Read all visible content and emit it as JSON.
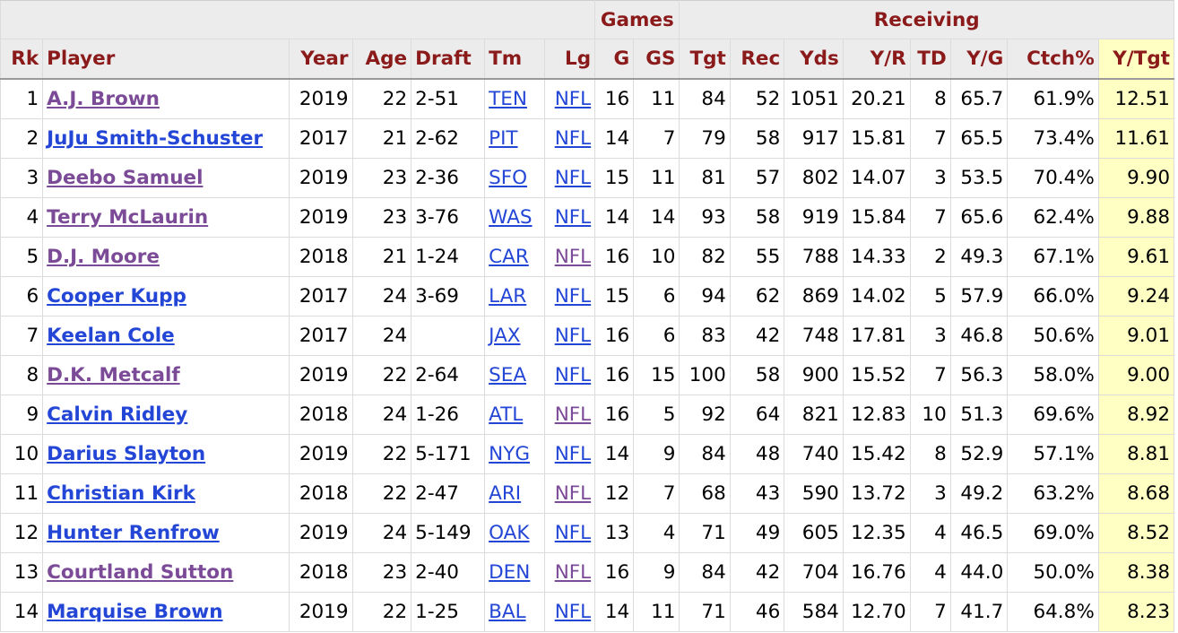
{
  "over_header": {
    "games": "Games",
    "receiving": "Receiving"
  },
  "columns": {
    "rk": "Rk",
    "player": "Player",
    "year": "Year",
    "age": "Age",
    "draft": "Draft",
    "tm": "Tm",
    "lg": "Lg",
    "g": "G",
    "gs": "GS",
    "tgt": "Tgt",
    "rec": "Rec",
    "yds": "Yds",
    "yr": "Y/R",
    "td": "TD",
    "yg": "Y/G",
    "ctch": "Ctch%",
    "ytgt": "Y/Tgt"
  },
  "colors": {
    "header_text": "#8b1a1a",
    "link": "#2346d6",
    "visited_link": "#7b4b97",
    "highlight": "#ffffc4"
  },
  "rows": [
    {
      "rk": "1",
      "player": "A.J. Brown",
      "player_visited": true,
      "year": "2019",
      "age": "22",
      "draft": "2-51",
      "tm": "TEN",
      "tm_visited": false,
      "lg": "NFL",
      "lg_visited": false,
      "g": "16",
      "gs": "11",
      "tgt": "84",
      "rec": "52",
      "yds": "1051",
      "yr": "20.21",
      "td": "8",
      "yg": "65.7",
      "ctch": "61.9%",
      "ytgt": "12.51"
    },
    {
      "rk": "2",
      "player": "JuJu Smith-Schuster",
      "player_visited": false,
      "year": "2017",
      "age": "21",
      "draft": "2-62",
      "tm": "PIT",
      "tm_visited": false,
      "lg": "NFL",
      "lg_visited": false,
      "g": "14",
      "gs": "7",
      "tgt": "79",
      "rec": "58",
      "yds": "917",
      "yr": "15.81",
      "td": "7",
      "yg": "65.5",
      "ctch": "73.4%",
      "ytgt": "11.61"
    },
    {
      "rk": "3",
      "player": "Deebo Samuel",
      "player_visited": true,
      "year": "2019",
      "age": "23",
      "draft": "2-36",
      "tm": "SFO",
      "tm_visited": false,
      "lg": "NFL",
      "lg_visited": false,
      "g": "15",
      "gs": "11",
      "tgt": "81",
      "rec": "57",
      "yds": "802",
      "yr": "14.07",
      "td": "3",
      "yg": "53.5",
      "ctch": "70.4%",
      "ytgt": "9.90"
    },
    {
      "rk": "4",
      "player": "Terry McLaurin",
      "player_visited": true,
      "year": "2019",
      "age": "23",
      "draft": "3-76",
      "tm": "WAS",
      "tm_visited": false,
      "lg": "NFL",
      "lg_visited": false,
      "g": "14",
      "gs": "14",
      "tgt": "93",
      "rec": "58",
      "yds": "919",
      "yr": "15.84",
      "td": "7",
      "yg": "65.6",
      "ctch": "62.4%",
      "ytgt": "9.88"
    },
    {
      "rk": "5",
      "player": "D.J. Moore",
      "player_visited": true,
      "year": "2018",
      "age": "21",
      "draft": "1-24",
      "tm": "CAR",
      "tm_visited": false,
      "lg": "NFL",
      "lg_visited": true,
      "g": "16",
      "gs": "10",
      "tgt": "82",
      "rec": "55",
      "yds": "788",
      "yr": "14.33",
      "td": "2",
      "yg": "49.3",
      "ctch": "67.1%",
      "ytgt": "9.61"
    },
    {
      "rk": "6",
      "player": "Cooper Kupp",
      "player_visited": false,
      "year": "2017",
      "age": "24",
      "draft": "3-69",
      "tm": "LAR",
      "tm_visited": false,
      "lg": "NFL",
      "lg_visited": false,
      "g": "15",
      "gs": "6",
      "tgt": "94",
      "rec": "62",
      "yds": "869",
      "yr": "14.02",
      "td": "5",
      "yg": "57.9",
      "ctch": "66.0%",
      "ytgt": "9.24"
    },
    {
      "rk": "7",
      "player": "Keelan Cole",
      "player_visited": false,
      "year": "2017",
      "age": "24",
      "draft": "",
      "tm": "JAX",
      "tm_visited": false,
      "lg": "NFL",
      "lg_visited": false,
      "g": "16",
      "gs": "6",
      "tgt": "83",
      "rec": "42",
      "yds": "748",
      "yr": "17.81",
      "td": "3",
      "yg": "46.8",
      "ctch": "50.6%",
      "ytgt": "9.01"
    },
    {
      "rk": "8",
      "player": "D.K. Metcalf",
      "player_visited": true,
      "year": "2019",
      "age": "22",
      "draft": "2-64",
      "tm": "SEA",
      "tm_visited": false,
      "lg": "NFL",
      "lg_visited": false,
      "g": "16",
      "gs": "15",
      "tgt": "100",
      "rec": "58",
      "yds": "900",
      "yr": "15.52",
      "td": "7",
      "yg": "56.3",
      "ctch": "58.0%",
      "ytgt": "9.00"
    },
    {
      "rk": "9",
      "player": "Calvin Ridley",
      "player_visited": false,
      "year": "2018",
      "age": "24",
      "draft": "1-26",
      "tm": "ATL",
      "tm_visited": false,
      "lg": "NFL",
      "lg_visited": true,
      "g": "16",
      "gs": "5",
      "tgt": "92",
      "rec": "64",
      "yds": "821",
      "yr": "12.83",
      "td": "10",
      "yg": "51.3",
      "ctch": "69.6%",
      "ytgt": "8.92"
    },
    {
      "rk": "10",
      "player": "Darius Slayton",
      "player_visited": false,
      "year": "2019",
      "age": "22",
      "draft": "5-171",
      "tm": "NYG",
      "tm_visited": false,
      "lg": "NFL",
      "lg_visited": false,
      "g": "14",
      "gs": "9",
      "tgt": "84",
      "rec": "48",
      "yds": "740",
      "yr": "15.42",
      "td": "8",
      "yg": "52.9",
      "ctch": "57.1%",
      "ytgt": "8.81"
    },
    {
      "rk": "11",
      "player": "Christian Kirk",
      "player_visited": false,
      "year": "2018",
      "age": "22",
      "draft": "2-47",
      "tm": "ARI",
      "tm_visited": false,
      "lg": "NFL",
      "lg_visited": true,
      "g": "12",
      "gs": "7",
      "tgt": "68",
      "rec": "43",
      "yds": "590",
      "yr": "13.72",
      "td": "3",
      "yg": "49.2",
      "ctch": "63.2%",
      "ytgt": "8.68"
    },
    {
      "rk": "12",
      "player": "Hunter Renfrow",
      "player_visited": false,
      "year": "2019",
      "age": "24",
      "draft": "5-149",
      "tm": "OAK",
      "tm_visited": false,
      "lg": "NFL",
      "lg_visited": false,
      "g": "13",
      "gs": "4",
      "tgt": "71",
      "rec": "49",
      "yds": "605",
      "yr": "12.35",
      "td": "4",
      "yg": "46.5",
      "ctch": "69.0%",
      "ytgt": "8.52"
    },
    {
      "rk": "13",
      "player": "Courtland Sutton",
      "player_visited": true,
      "year": "2018",
      "age": "23",
      "draft": "2-40",
      "tm": "DEN",
      "tm_visited": false,
      "lg": "NFL",
      "lg_visited": true,
      "g": "16",
      "gs": "9",
      "tgt": "84",
      "rec": "42",
      "yds": "704",
      "yr": "16.76",
      "td": "4",
      "yg": "44.0",
      "ctch": "50.0%",
      "ytgt": "8.38"
    },
    {
      "rk": "14",
      "player": "Marquise Brown",
      "player_visited": false,
      "year": "2019",
      "age": "22",
      "draft": "1-25",
      "tm": "BAL",
      "tm_visited": false,
      "lg": "NFL",
      "lg_visited": false,
      "g": "14",
      "gs": "11",
      "tgt": "71",
      "rec": "46",
      "yds": "584",
      "yr": "12.70",
      "td": "7",
      "yg": "41.7",
      "ctch": "64.8%",
      "ytgt": "8.23"
    }
  ]
}
